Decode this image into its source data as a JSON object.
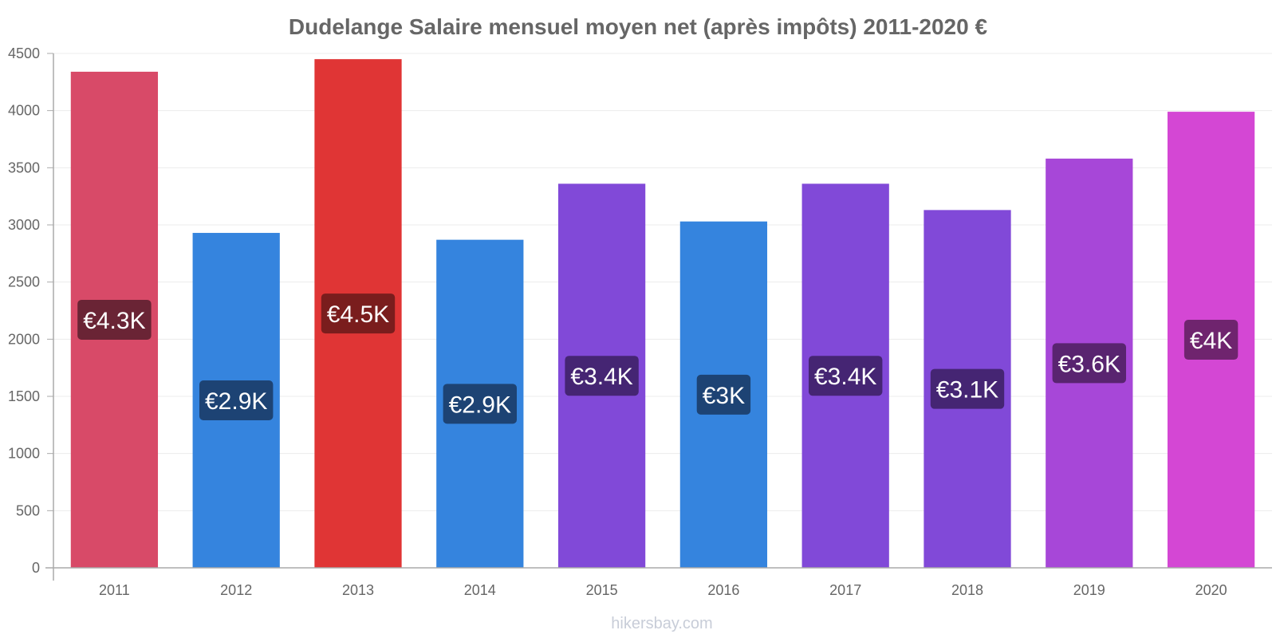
{
  "chart_data": {
    "type": "bar",
    "title": "Dudelange Salaire mensuel moyen net (après impôts) 2011-2020 €",
    "categories": [
      "2011",
      "2012",
      "2013",
      "2014",
      "2015",
      "2016",
      "2017",
      "2018",
      "2019",
      "2020"
    ],
    "values": [
      4340,
      2930,
      4450,
      2870,
      3360,
      3030,
      3360,
      3130,
      3580,
      3990
    ],
    "value_labels": [
      "€4.3K",
      "€2.9K",
      "€4.5K",
      "€2.9K",
      "€3.4K",
      "€3K",
      "€3.4K",
      "€3.1K",
      "€3.6K",
      "€4K"
    ],
    "bar_colors": [
      "#d84a68",
      "#3584de",
      "#e03535",
      "#3584de",
      "#8149d8",
      "#3584de",
      "#8149d8",
      "#8149d8",
      "#a747d8",
      "#d447d4"
    ],
    "label_bg_colors": [
      "#6a2435",
      "#1d4374",
      "#7a1d1d",
      "#1d4374",
      "#452573",
      "#1d4374",
      "#452573",
      "#452573",
      "#592470",
      "#6f246e"
    ],
    "y_ticks": [
      0,
      500,
      1000,
      1500,
      2000,
      2500,
      3000,
      3500,
      4000,
      4500
    ],
    "ylim": [
      0,
      4500
    ],
    "grid": true,
    "xlabel": "",
    "ylabel": ""
  },
  "watermark": "hikersbay.com"
}
